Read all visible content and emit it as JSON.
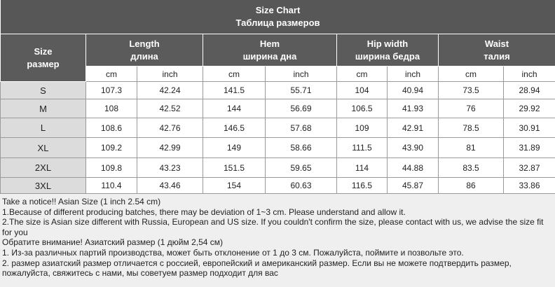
{
  "header": {
    "title": "Size Chart",
    "subtitle": "Таблица размеров"
  },
  "table": {
    "size_header": {
      "en": "Size",
      "ru": "размер"
    },
    "groups": [
      {
        "en": "Length",
        "ru": "длина"
      },
      {
        "en": "Hem",
        "ru": "ширина дна"
      },
      {
        "en": "Hip width",
        "ru": "ширина бедра"
      },
      {
        "en": "Waist",
        "ru": "талия"
      }
    ],
    "units": [
      "cm",
      "inch",
      "cm",
      "inch",
      "cm",
      "inch",
      "cm",
      "inch"
    ],
    "rows": [
      [
        "S",
        "107.3",
        "42.24",
        "141.5",
        "55.71",
        "104",
        "40.94",
        "73.5",
        "28.94"
      ],
      [
        "M",
        "108",
        "42.52",
        "144",
        "56.69",
        "106.5",
        "41.93",
        "76",
        "29.92"
      ],
      [
        "L",
        "108.6",
        "42.76",
        "146.5",
        "57.68",
        "109",
        "42.91",
        "78.5",
        "30.91"
      ],
      [
        "XL",
        "109.2",
        "42.99",
        "149",
        "58.66",
        "111.5",
        "43.90",
        "81",
        "31.89"
      ],
      [
        "2XL",
        "109.8",
        "43.23",
        "151.5",
        "59.65",
        "114",
        "44.88",
        "83.5",
        "32.87"
      ],
      [
        "3XL",
        "110.4",
        "43.46",
        "154",
        "60.63",
        "116.5",
        "45.87",
        "86",
        "33.86"
      ]
    ]
  },
  "notes": [
    "Take a notice!! Asian Size (1 inch 2.54 cm)",
    "1.Because of different producing batches, there may be deviation of 1~3 cm. Please understand and allow it.",
    "2.The size is Asian size different with Russia, European and US size. If you couldn't confirm the size, please contact with us, we advise the size fit for you",
    "Обратите внимание! Азиатский размер (1 дюйм 2,54 см)",
    "1. Из-за различных партий производства, может быть отклонение от 1 до 3 см. Пожалуйста, поймите и позвольте это.",
    "2. размер азиатский размер отличается с россией, европейский и американский размер. Если вы не можете подтвердить размер, пожалуйста, свяжитесь с нами, мы советуем размер подходит для вас"
  ]
}
